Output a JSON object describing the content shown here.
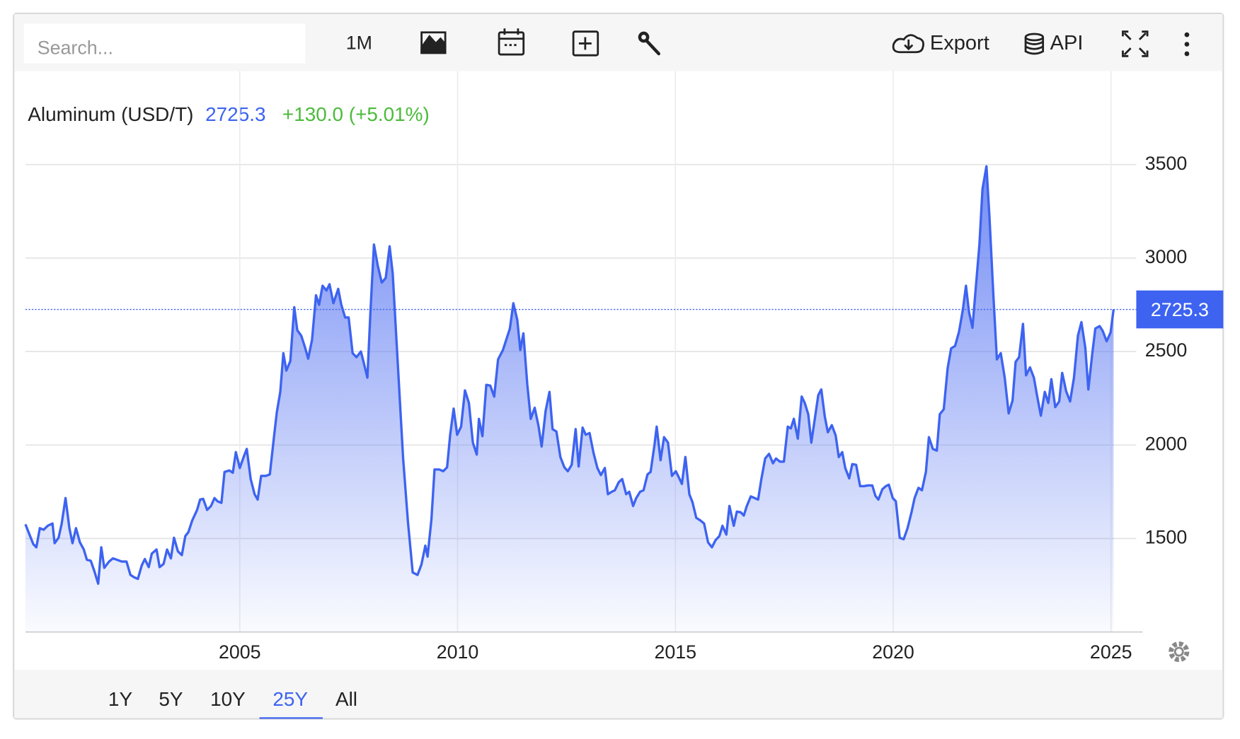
{
  "toolbar": {
    "search_placeholder": "Search...",
    "interval": "1M",
    "export": "Export",
    "api": "API"
  },
  "range_buttons": [
    "1Y",
    "5Y",
    "10Y",
    "25Y",
    "All"
  ],
  "active_range_index": 3,
  "chart_data": {
    "type": "area",
    "title": "Aluminum (USD/T)",
    "last": 2725.3,
    "change": "+130.0 (+5.01%)",
    "x": [
      2000.08,
      2000.26,
      2000.33,
      2000.41,
      2000.5,
      2000.59,
      2000.7,
      2000.75,
      2000.84,
      2000.91,
      2001.0,
      2001.09,
      2001.16,
      2001.24,
      2001.33,
      2001.42,
      2001.49,
      2001.58,
      2001.66,
      2001.75,
      2001.82,
      2001.89,
      2002.0,
      2002.09,
      2002.18,
      2002.29,
      2002.4,
      2002.49,
      2002.58,
      2002.66,
      2002.75,
      2002.82,
      2002.91,
      2002.98,
      2003.09,
      2003.16,
      2003.25,
      2003.33,
      2003.42,
      2003.49,
      2003.58,
      2003.67,
      2003.75,
      2003.82,
      2003.91,
      2004.02,
      2004.09,
      2004.16,
      2004.25,
      2004.34,
      2004.42,
      2004.49,
      2004.58,
      2004.65,
      2004.76,
      2004.84,
      2004.91,
      2005.0,
      2005.09,
      2005.16,
      2005.25,
      2005.34,
      2005.41,
      2005.49,
      2005.6,
      2005.69,
      2005.78,
      2005.85,
      2005.93,
      2006.0,
      2006.07,
      2006.16,
      2006.25,
      2006.32,
      2006.41,
      2006.5,
      2006.57,
      2006.66,
      2006.75,
      2006.82,
      2006.9,
      2006.99,
      2007.06,
      2007.15,
      2007.26,
      2007.33,
      2007.42,
      2007.5,
      2007.59,
      2007.68,
      2007.78,
      2007.84,
      2007.93,
      2008.0,
      2008.08,
      2008.17,
      2008.26,
      2008.35,
      2008.44,
      2008.51,
      2008.64,
      2008.75,
      2008.86,
      2008.97,
      2009.08,
      2009.17,
      2009.26,
      2009.31,
      2009.4,
      2009.47,
      2009.58,
      2009.67,
      2009.76,
      2009.83,
      2009.91,
      2009.99,
      2010.08,
      2010.17,
      2010.26,
      2010.35,
      2010.44,
      2010.49,
      2010.57,
      2010.66,
      2010.75,
      2010.84,
      2010.93,
      2011.04,
      2011.13,
      2011.2,
      2011.28,
      2011.37,
      2011.44,
      2011.51,
      2011.6,
      2011.68,
      2011.77,
      2011.86,
      2011.93,
      2012.02,
      2012.11,
      2012.18,
      2012.27,
      2012.36,
      2012.45,
      2012.53,
      2012.62,
      2012.71,
      2012.78,
      2012.87,
      2012.94,
      2013.03,
      2013.12,
      2013.21,
      2013.29,
      2013.38,
      2013.45,
      2013.54,
      2013.61,
      2013.7,
      2013.78,
      2013.87,
      2013.94,
      2014.03,
      2014.1,
      2014.19,
      2014.27,
      2014.36,
      2014.43,
      2014.52,
      2014.57,
      2014.66,
      2014.74,
      2014.83,
      2014.92,
      2015.01,
      2015.08,
      2015.15,
      2015.23,
      2015.32,
      2015.39,
      2015.48,
      2015.57,
      2015.66,
      2015.75,
      2015.84,
      2015.92,
      2016.01,
      2016.08,
      2016.17,
      2016.24,
      2016.34,
      2016.41,
      2016.5,
      2016.57,
      2016.64,
      2016.73,
      2016.82,
      2016.9,
      2016.97,
      2017.06,
      2017.15,
      2017.24,
      2017.31,
      2017.4,
      2017.49,
      2017.58,
      2017.65,
      2017.72,
      2017.81,
      2017.9,
      2017.97,
      2018.05,
      2018.12,
      2018.19,
      2018.28,
      2018.35,
      2018.43,
      2018.5,
      2018.59,
      2018.68,
      2018.75,
      2018.83,
      2018.9,
      2018.99,
      2019.06,
      2019.15,
      2019.24,
      2019.33,
      2019.42,
      2019.52,
      2019.59,
      2019.66,
      2019.75,
      2019.83,
      2019.9,
      2019.99,
      2020.06,
      2020.15,
      2020.24,
      2020.33,
      2020.42,
      2020.49,
      2020.58,
      2020.66,
      2020.75,
      2020.82,
      2020.91,
      2021.0,
      2021.07,
      2021.16,
      2021.25,
      2021.33,
      2021.42,
      2021.51,
      2021.6,
      2021.67,
      2021.74,
      2021.82,
      2021.89,
      2021.98,
      2022.05,
      2022.14,
      2022.21,
      2022.3,
      2022.38,
      2022.47,
      2022.56,
      2022.65,
      2022.74,
      2022.81,
      2022.89,
      2022.98,
      2023.05,
      2023.14,
      2023.23,
      2023.3,
      2023.39,
      2023.48,
      2023.56,
      2023.63,
      2023.72,
      2023.81,
      2023.88,
      2023.97,
      2024.06,
      2024.15,
      2024.24,
      2024.32,
      2024.41,
      2024.48,
      2024.57,
      2024.64,
      2024.74,
      2024.81,
      2024.9,
      2024.99,
      2025.06
    ],
    "series": [
      {
        "color": "#3d63f0",
        "values": [
          1576,
          1470,
          1453,
          1555,
          1547,
          1568,
          1580,
          1475,
          1504,
          1576,
          1716,
          1555,
          1475,
          1555,
          1479,
          1441,
          1386,
          1381,
          1326,
          1258,
          1453,
          1343,
          1377,
          1394,
          1386,
          1377,
          1377,
          1305,
          1292,
          1284,
          1356,
          1390,
          1347,
          1419,
          1441,
          1347,
          1364,
          1441,
          1394,
          1504,
          1432,
          1411,
          1513,
          1534,
          1597,
          1653,
          1708,
          1712,
          1653,
          1674,
          1716,
          1699,
          1691,
          1856,
          1864,
          1852,
          1962,
          1877,
          1936,
          1979,
          1818,
          1737,
          1708,
          1835,
          1835,
          1843,
          2034,
          2174,
          2284,
          2491,
          2398,
          2449,
          2737,
          2614,
          2585,
          2521,
          2462,
          2563,
          2801,
          2750,
          2852,
          2826,
          2860,
          2758,
          2835,
          2750,
          2682,
          2682,
          2491,
          2470,
          2500,
          2445,
          2360,
          2716,
          3072,
          2958,
          2869,
          2894,
          3063,
          2919,
          2386,
          1928,
          1589,
          1318,
          1305,
          1360,
          1462,
          1403,
          1602,
          1869,
          1869,
          1860,
          1881,
          2055,
          2195,
          2055,
          2098,
          2292,
          2225,
          2013,
          1949,
          2140,
          2047,
          2322,
          2318,
          2259,
          2458,
          2508,
          2572,
          2623,
          2758,
          2669,
          2508,
          2597,
          2326,
          2140,
          2199,
          2098,
          1992,
          2182,
          2284,
          2085,
          2072,
          1936,
          1881,
          1860,
          1894,
          2085,
          1885,
          2093,
          2055,
          2064,
          1958,
          1877,
          1839,
          1877,
          1737,
          1750,
          1758,
          1801,
          1818,
          1737,
          1750,
          1674,
          1716,
          1750,
          1758,
          1843,
          1856,
          2000,
          2098,
          1919,
          2042,
          2013,
          1835,
          1860,
          1826,
          1792,
          1936,
          1737,
          1695,
          1610,
          1597,
          1580,
          1479,
          1453,
          1491,
          1513,
          1568,
          1521,
          1674,
          1568,
          1644,
          1640,
          1623,
          1674,
          1725,
          1716,
          1708,
          1813,
          1928,
          1953,
          1902,
          1928,
          1911,
          1911,
          2098,
          2089,
          2140,
          2034,
          2259,
          2225,
          2165,
          2013,
          2123,
          2267,
          2297,
          2153,
          2068,
          2106,
          2051,
          1936,
          1962,
          1877,
          1822,
          1898,
          1894,
          1780,
          1780,
          1784,
          1784,
          1729,
          1708,
          1763,
          1780,
          1788,
          1716,
          1699,
          1504,
          1496,
          1555,
          1640,
          1716,
          1771,
          1758,
          1856,
          2042,
          1979,
          1970,
          2165,
          2191,
          2411,
          2517,
          2530,
          2606,
          2725,
          2852,
          2712,
          2627,
          2826,
          3072,
          3369,
          3491,
          3220,
          2797,
          2458,
          2491,
          2360,
          2169,
          2238,
          2445,
          2470,
          2648,
          2373,
          2415,
          2360,
          2267,
          2157,
          2284,
          2225,
          2352,
          2203,
          2233,
          2386,
          2288,
          2233,
          2360,
          2585,
          2657,
          2521,
          2297,
          2491,
          2623,
          2636,
          2610,
          2555,
          2602,
          2725.3
        ]
      }
    ],
    "xlim": [
      2000.08,
      2025.58
    ],
    "xticks": [
      2005,
      2010,
      2015,
      2020,
      2025
    ],
    "ylim": [
      1000,
      4000
    ],
    "yticks": [
      1500,
      2000,
      2500,
      3000,
      3500
    ],
    "grid": true
  }
}
